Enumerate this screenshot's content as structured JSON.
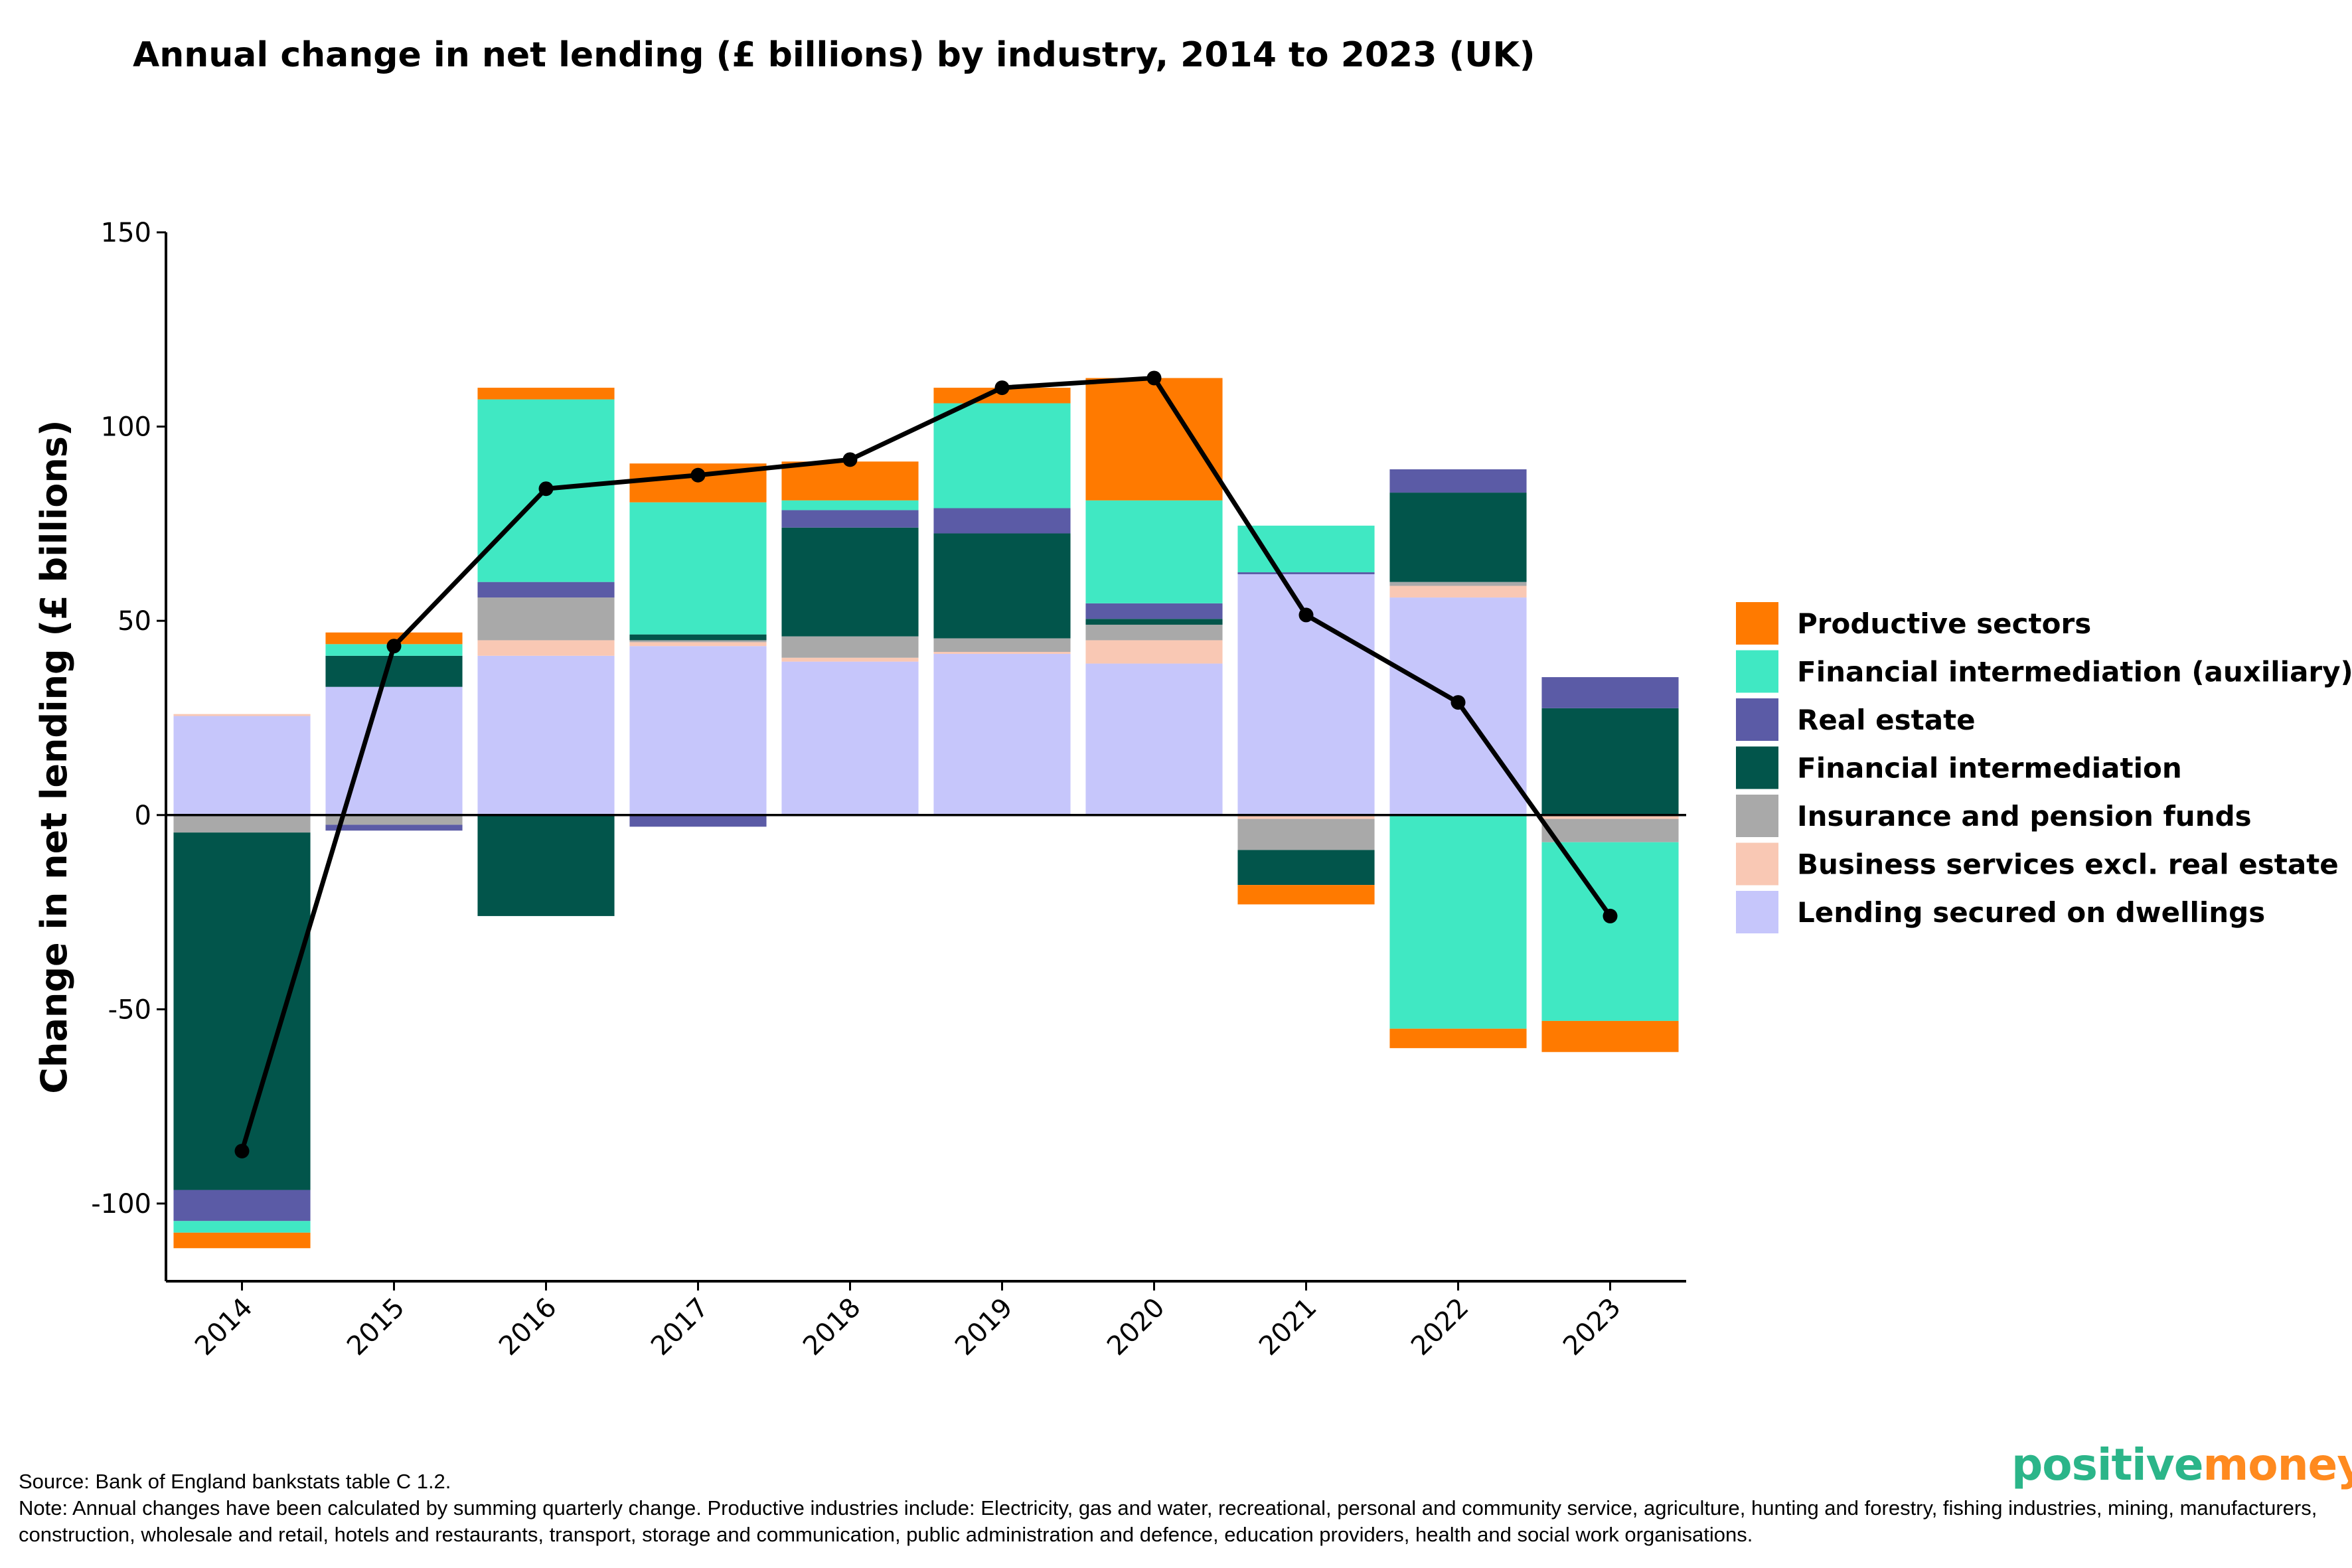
{
  "chart_data": {
    "type": "bar",
    "stacked": true,
    "title": "Annual change in net lending (£ billions) by industry, 2014 to 2023 (UK)",
    "xlabel": "",
    "ylabel": "Change in net lending (£ billions)",
    "ylim": [
      -120,
      150
    ],
    "yticks": [
      -100,
      -50,
      0,
      50,
      100,
      150
    ],
    "categories": [
      "2014",
      "2015",
      "2016",
      "2017",
      "2018",
      "2019",
      "2020",
      "2021",
      "2022",
      "2023"
    ],
    "series": [
      {
        "name": "Lending secured on dwellings",
        "color": "#c6c6fb",
        "values": [
          25.5,
          33,
          41,
          43.5,
          39.5,
          41.5,
          39,
          62,
          56,
          0
        ]
      },
      {
        "name": "Business services excl. real estate",
        "color": "#f9c8b4",
        "values": [
          0.5,
          0,
          4,
          1,
          1,
          0.5,
          6,
          -1,
          3,
          -1
        ]
      },
      {
        "name": "Insurance and pension funds",
        "color": "#a9a9a9",
        "values": [
          -4.5,
          -2.5,
          11,
          0.5,
          5.5,
          3.5,
          4,
          -8,
          1,
          -6
        ]
      },
      {
        "name": "Financial intermediation",
        "color": "#02554b",
        "values": [
          -92,
          8,
          -26,
          1.5,
          28,
          27,
          1.5,
          -9,
          23,
          27.5
        ]
      },
      {
        "name": "Real estate",
        "color": "#5b5ba6",
        "values": [
          -8,
          -1.5,
          4,
          -3,
          4.5,
          6.5,
          4,
          0.5,
          6,
          8
        ]
      },
      {
        "name": "Financial intermediation (auxiliary)",
        "color": "#40e8c3",
        "values": [
          -3,
          3,
          47,
          34,
          2.5,
          27,
          26.5,
          12,
          -55,
          -46
        ]
      },
      {
        "name": "Productive sectors",
        "color": "#ff7a00",
        "values": [
          -4,
          3,
          3,
          10,
          10,
          4,
          31.5,
          -5,
          -5,
          -8
        ]
      }
    ],
    "line": {
      "name": "Total",
      "color": "#000000",
      "values": [
        -86.5,
        43.5,
        84,
        87.5,
        91.5,
        110,
        112.5,
        51.5,
        29,
        -26
      ]
    },
    "legend": {
      "position": "right",
      "entries": [
        "Productive sectors",
        "Financial intermediation (auxiliary)",
        "Real estate",
        "Financial intermediation",
        "Insurance and pension funds",
        "Business services excl. real estate",
        "Lending secured on dwellings"
      ]
    },
    "grid": false
  },
  "footer": {
    "source": "Source: Bank of England bankstats table C 1.2.",
    "note": "Note: Annual changes have been calculated by summing quarterly change. Productive industries include: Electricity, gas and water, recreational, personal and community service, agriculture, hunting and forestry, fishing industries, mining, manufacturers, construction, wholesale and retail, hotels and restaurants, transport, storage and communication, public administration and defence, education providers, health and social work organisations."
  },
  "logo": {
    "part1": "positive",
    "part2": "money",
    "color1": "#2bb589",
    "color2": "#ff8a1f"
  }
}
